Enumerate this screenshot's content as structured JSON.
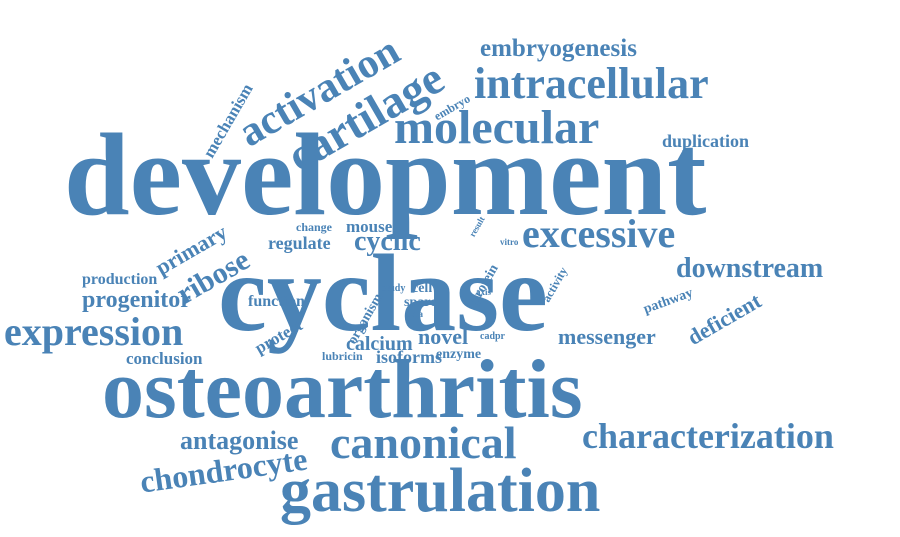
{
  "cloud": {
    "color": "#4a83b6",
    "words": [
      "development",
      "cyclase",
      "osteoarthritis",
      "gastrulation",
      "canonical",
      "molecular",
      "intracellular",
      "cartilage",
      "activation",
      "expression",
      "characterization",
      "excessive",
      "downstream",
      "chondrocyte",
      "antagonise",
      "embryogenesis",
      "ribose",
      "progenitor",
      "cyclic",
      "primary",
      "mechanism",
      "calcium",
      "novel",
      "isoforms",
      "messenger",
      "deficient",
      "conclusion",
      "production",
      "function",
      "protect",
      "regulate",
      "mouse",
      "change",
      "cell",
      "sparc",
      "study",
      "organism",
      "protein",
      "pathway",
      "lubricin",
      "enzyme",
      "cadpr",
      "data",
      "axis",
      "activity",
      "result",
      "vitro",
      "embryo",
      "duplication"
    ]
  }
}
